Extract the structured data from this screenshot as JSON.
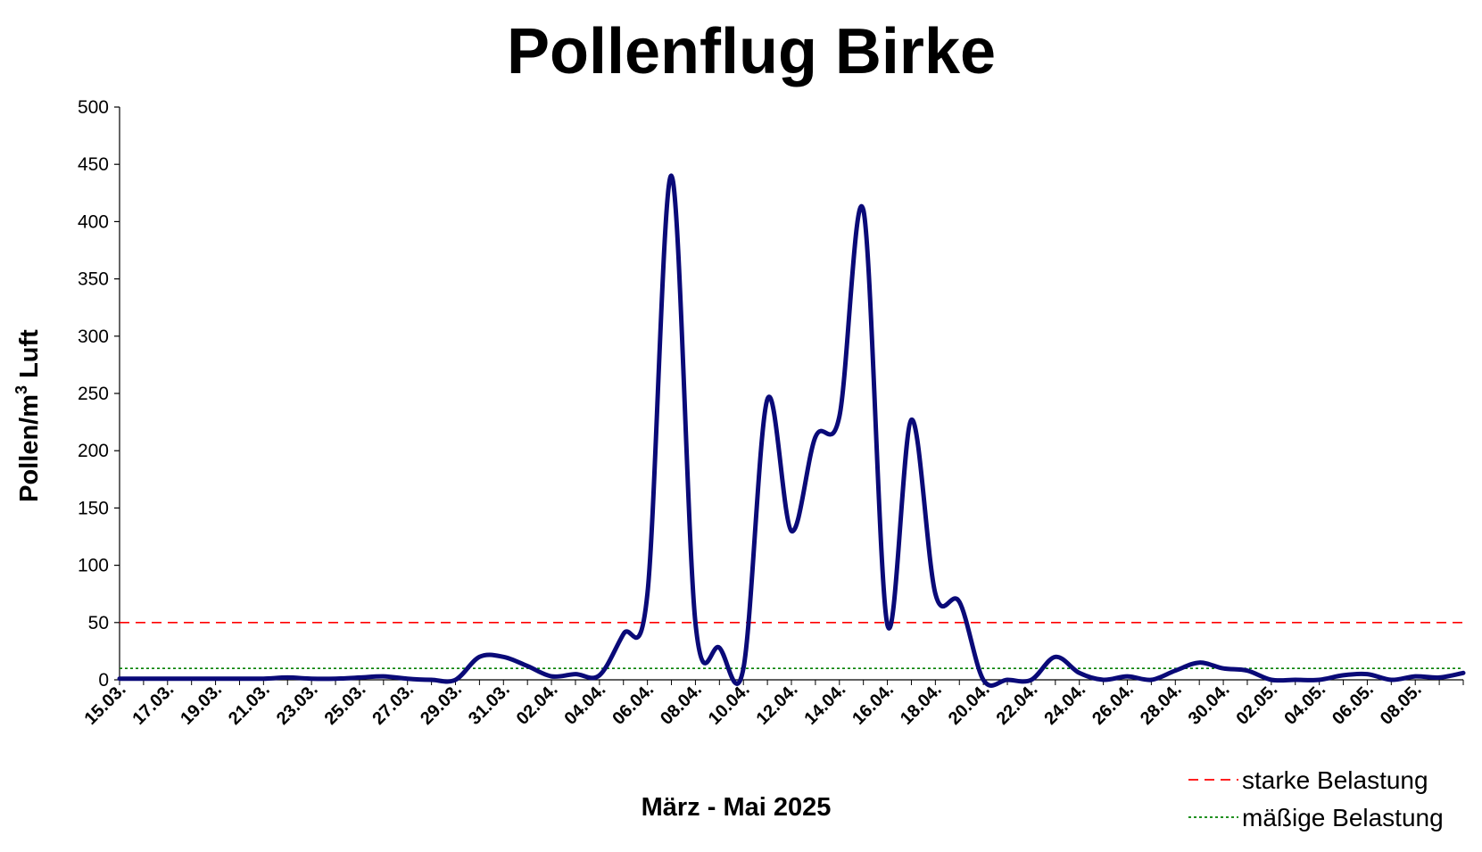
{
  "chart_data": {
    "type": "line",
    "title": "Pollenflug Birke",
    "xlabel": "März - Mai 2025",
    "ylabel_main": "Pollen/m",
    "ylabel_sup": "3",
    "ylabel_tail": " Luft",
    "ylim": [
      0,
      500
    ],
    "yticks": [
      0,
      50,
      100,
      150,
      200,
      250,
      300,
      350,
      400,
      450,
      500
    ],
    "xtick_labels": [
      "15.03.",
      "17.03.",
      "19.03.",
      "21.03.",
      "23.03.",
      "25.03.",
      "27.03.",
      "29.03.",
      "31.03.",
      "02.04.",
      "04.04.",
      "06.04.",
      "08.04.",
      "10.04.",
      "12.04.",
      "14.04.",
      "16.04.",
      "18.04.",
      "20.04.",
      "22.04.",
      "24.04.",
      "26.04.",
      "28.04.",
      "30.04.",
      "02.05.",
      "04.05.",
      "06.05.",
      "08.05."
    ],
    "x_start": "15.03.",
    "x_end": "08.05.",
    "series": [
      {
        "name": "",
        "color": "#0a0a78",
        "values": [
          1,
          1,
          1,
          1,
          1,
          1,
          1,
          2,
          1,
          1,
          2,
          3,
          1,
          0,
          0,
          20,
          20,
          12,
          3,
          5,
          4,
          40,
          75,
          440,
          50,
          28,
          10,
          245,
          130,
          212,
          230,
          410,
          48,
          227,
          75,
          68,
          0,
          0,
          0,
          20,
          6,
          0,
          3,
          0,
          8,
          15,
          10,
          8,
          0,
          0,
          0,
          4,
          5,
          0,
          3,
          2,
          6
        ]
      }
    ],
    "thresholds": [
      {
        "name": "starke Belastung",
        "value": 50,
        "color": "#ff0000",
        "style": "dashed"
      },
      {
        "name": "mäßige Belastung",
        "value": 10,
        "color": "#008000",
        "style": "dotted"
      }
    ],
    "grid": false,
    "legend_position": "bottom-right"
  }
}
